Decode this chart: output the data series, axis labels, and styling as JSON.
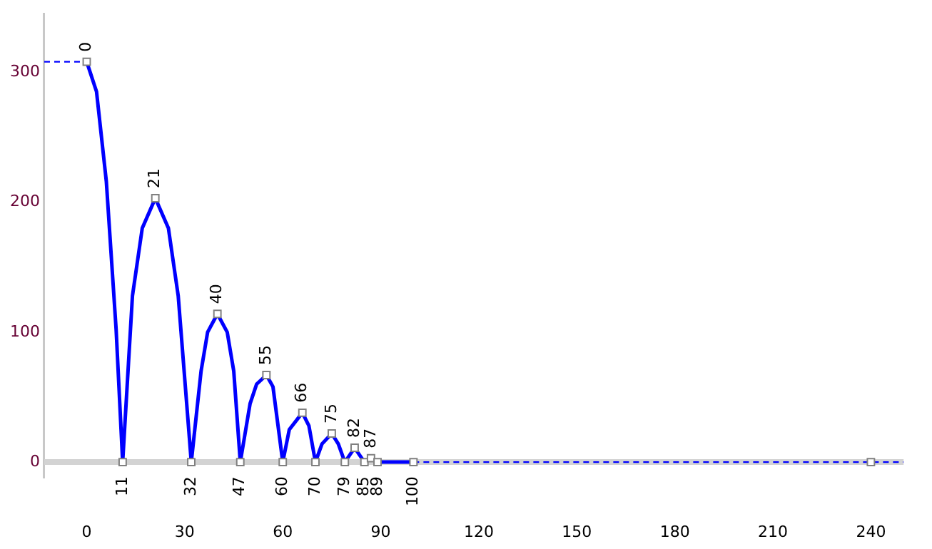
{
  "chart_data": {
    "type": "line",
    "xlim": [
      -13,
      250
    ],
    "ylim": [
      -12,
      345
    ],
    "xticks": [
      0,
      30,
      60,
      90,
      120,
      150,
      180,
      210,
      240
    ],
    "yticks": [
      0,
      100,
      200,
      300
    ],
    "grid": false,
    "legend": false,
    "ref_lines": [
      {
        "axis": "y",
        "value": 0,
        "color": "#d3d3d3"
      }
    ],
    "series": [
      {
        "color": "#0000ff",
        "line_style": "solid",
        "marker": "none",
        "x": [
          0,
          3,
          6,
          9,
          11,
          14,
          17,
          21,
          25,
          28,
          32,
          35,
          37,
          40,
          43,
          45,
          47,
          50,
          52,
          55,
          57,
          60,
          62,
          66,
          68,
          70,
          72,
          75,
          77,
          79,
          82,
          85,
          87,
          89,
          100
        ],
        "values": [
          308,
          285,
          216,
          102,
          0,
          128,
          180,
          203,
          180,
          128,
          0,
          70,
          100,
          114,
          100,
          70,
          0,
          45,
          60,
          67,
          58,
          0,
          25,
          38,
          28,
          0,
          14,
          22,
          14,
          0,
          11,
          0,
          3,
          0,
          0
        ]
      },
      {
        "type": "line",
        "color": "#0000ff",
        "line_style": "dashed",
        "marker": "none",
        "x": [
          -13,
          0
        ],
        "values": [
          308,
          308
        ]
      },
      {
        "type": "line",
        "color": "#0000ff",
        "line_style": "dashed",
        "marker": "none",
        "x": [
          100,
          250
        ],
        "values": [
          0,
          0
        ]
      },
      {
        "type": "scatter",
        "color": "#808080",
        "marker": "square",
        "x": [
          0,
          11,
          21,
          32,
          40,
          47,
          55,
          60,
          66,
          70,
          75,
          79,
          82,
          85,
          87,
          89,
          100,
          240
        ],
        "values": [
          308,
          0,
          203,
          0,
          114,
          0,
          67,
          0,
          38,
          0,
          22,
          0,
          11,
          0,
          3,
          0,
          0,
          0
        ]
      }
    ],
    "annotations": [
      {
        "text": "0",
        "x": 0,
        "y": 308
      },
      {
        "text": "11",
        "x": 11,
        "y": 0
      },
      {
        "text": "21",
        "x": 21,
        "y": 203
      },
      {
        "text": "32",
        "x": 32,
        "y": 0
      },
      {
        "text": "40",
        "x": 40,
        "y": 114
      },
      {
        "text": "47",
        "x": 47,
        "y": 0
      },
      {
        "text": "55",
        "x": 55,
        "y": 67
      },
      {
        "text": "60",
        "x": 60,
        "y": 0
      },
      {
        "text": "66",
        "x": 66,
        "y": 38
      },
      {
        "text": "70",
        "x": 70,
        "y": 0
      },
      {
        "text": "75",
        "x": 75,
        "y": 22
      },
      {
        "text": "79",
        "x": 79,
        "y": 0
      },
      {
        "text": "82",
        "x": 82,
        "y": 11
      },
      {
        "text": "85",
        "x": 85,
        "y": 0
      },
      {
        "text": "87",
        "x": 87,
        "y": 3
      },
      {
        "text": "89",
        "x": 89,
        "y": 0
      },
      {
        "text": "100",
        "x": 100,
        "y": 0
      }
    ]
  }
}
